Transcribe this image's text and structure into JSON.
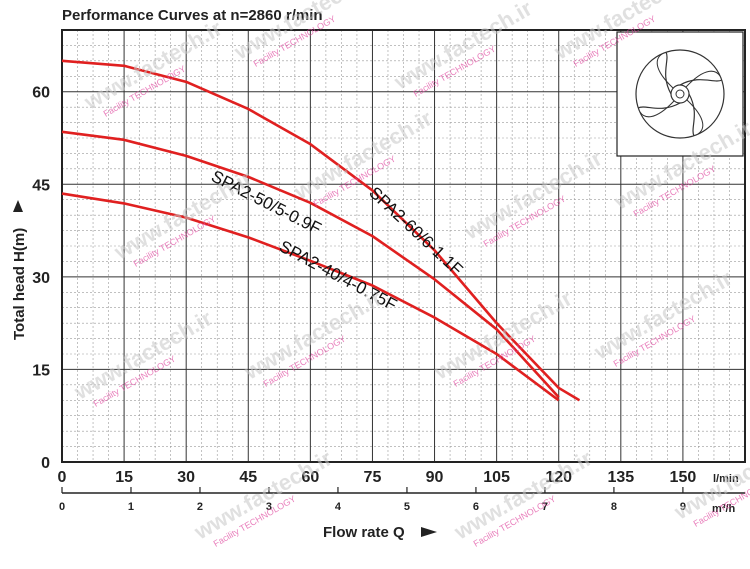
{
  "chart_data": {
    "type": "line",
    "title": "Performance Curves at n=2860 r/min",
    "xlabel": "Flow rate Q",
    "ylabel": "Total head H(m)",
    "x_unit_primary": "l/min",
    "x_unit_secondary": "m³/h",
    "xlim": [
      0,
      165
    ],
    "ylim": [
      0,
      70
    ],
    "x_ticks": [
      "0",
      "15",
      "30",
      "45",
      "60",
      "75",
      "90",
      "105",
      "120",
      "135",
      "150"
    ],
    "x_secondary_ticks": [
      "0",
      "1",
      "2",
      "3",
      "4",
      "5",
      "6",
      "7",
      "8",
      "9"
    ],
    "y_ticks": [
      "0",
      "15",
      "30",
      "45",
      "60"
    ],
    "grid": true,
    "series": [
      {
        "name": "SPA2-60/6-1.1F",
        "color": "#e02020",
        "x": [
          0,
          15,
          30,
          45,
          60,
          75,
          90,
          105,
          120,
          125
        ],
        "y": [
          65,
          64.2,
          61.6,
          57.2,
          51.5,
          44,
          34.3,
          22.5,
          12,
          10
        ]
      },
      {
        "name": "SPA2-50/5-0.9F",
        "color": "#e02020",
        "x": [
          0,
          15,
          30,
          45,
          60,
          75,
          90,
          105,
          120
        ],
        "y": [
          53.5,
          52.2,
          49.6,
          46.2,
          42,
          36.6,
          29.6,
          21.5,
          10.5
        ]
      },
      {
        "name": "SPA2-40/4-0.75F",
        "color": "#e02020",
        "x": [
          0,
          15,
          30,
          45,
          60,
          75,
          90,
          105,
          120
        ],
        "y": [
          43.5,
          41.9,
          39.6,
          36.4,
          32.6,
          28.6,
          23.4,
          17.5,
          10
        ]
      }
    ],
    "legend": "labels on curves",
    "labels": [
      "SPA2-50/5-0.9F",
      "SPA2-60/6-1.1F",
      "SPA2-40/4-0.75F"
    ]
  },
  "watermark": {
    "main": "www.factech.ir",
    "sub": "Facility TECHNOLOGY"
  },
  "inset": {
    "icon": "impeller-icon"
  }
}
